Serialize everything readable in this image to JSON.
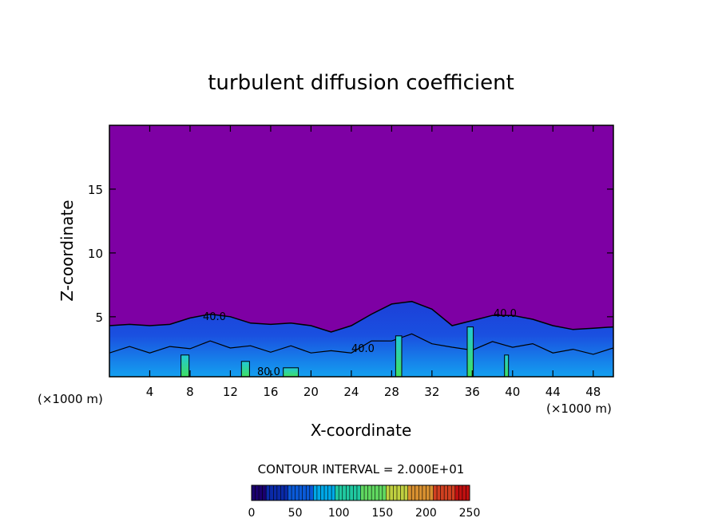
{
  "chart_data": {
    "type": "heatmap",
    "title": "turbulent diffusion coefficient",
    "xlabel": "X-coordinate",
    "ylabel": "Z-coordinate",
    "x_unit_left": "(×1000 m)",
    "x_unit_right": "(×1000 m)",
    "xlim": [
      0,
      50
    ],
    "ylim": [
      0.3,
      20
    ],
    "x_ticks": [
      4,
      8,
      12,
      16,
      20,
      24,
      28,
      32,
      36,
      40,
      44,
      48
    ],
    "y_ticks": [
      5,
      10,
      15
    ],
    "contour_interval_label": "CONTOUR INTERVAL = 2.000E+01",
    "contour_labels": [
      "40.0",
      "80.0",
      "40.0",
      "40.0"
    ],
    "colorbar": {
      "min": 0,
      "max": 250,
      "ticks": [
        0,
        50,
        100,
        150,
        200,
        250
      ],
      "colors": [
        "#1a006e",
        "#0a2aa8",
        "#0a5ad8",
        "#00a8e8",
        "#20c8a0",
        "#60d860",
        "#c0d040",
        "#d89030",
        "#d04020",
        "#c01010"
      ]
    },
    "background_color": "#7e00a4",
    "boundary_layer_top": [
      {
        "x": 0,
        "z": 4.3
      },
      {
        "x": 2,
        "z": 4.4
      },
      {
        "x": 4,
        "z": 4.3
      },
      {
        "x": 6,
        "z": 4.4
      },
      {
        "x": 8,
        "z": 4.9
      },
      {
        "x": 10,
        "z": 5.2
      },
      {
        "x": 12,
        "z": 5.0
      },
      {
        "x": 14,
        "z": 4.5
      },
      {
        "x": 16,
        "z": 4.4
      },
      {
        "x": 18,
        "z": 4.5
      },
      {
        "x": 20,
        "z": 4.3
      },
      {
        "x": 22,
        "z": 3.8
      },
      {
        "x": 24,
        "z": 4.3
      },
      {
        "x": 26,
        "z": 5.2
      },
      {
        "x": 28,
        "z": 6.0
      },
      {
        "x": 30,
        "z": 6.2
      },
      {
        "x": 32,
        "z": 5.6
      },
      {
        "x": 34,
        "z": 4.3
      },
      {
        "x": 36,
        "z": 4.7
      },
      {
        "x": 38,
        "z": 5.1
      },
      {
        "x": 40,
        "z": 5.1
      },
      {
        "x": 42,
        "z": 4.8
      },
      {
        "x": 44,
        "z": 4.3
      },
      {
        "x": 46,
        "z": 4.0
      },
      {
        "x": 48,
        "z": 4.1
      },
      {
        "x": 50,
        "z": 4.2
      }
    ],
    "high_value_plumes": [
      {
        "x": 7.5,
        "width": 0.8,
        "top": 2.0,
        "value": 80
      },
      {
        "x": 13.5,
        "width": 0.8,
        "top": 1.5,
        "value": 80
      },
      {
        "x": 18.0,
        "width": 1.5,
        "top": 1.0,
        "value": 80
      },
      {
        "x": 28.7,
        "width": 0.6,
        "top": 3.5,
        "value": 80
      },
      {
        "x": 35.8,
        "width": 0.6,
        "top": 4.2,
        "value": 80
      },
      {
        "x": 39.4,
        "width": 0.4,
        "top": 2.0,
        "value": 100
      }
    ]
  }
}
